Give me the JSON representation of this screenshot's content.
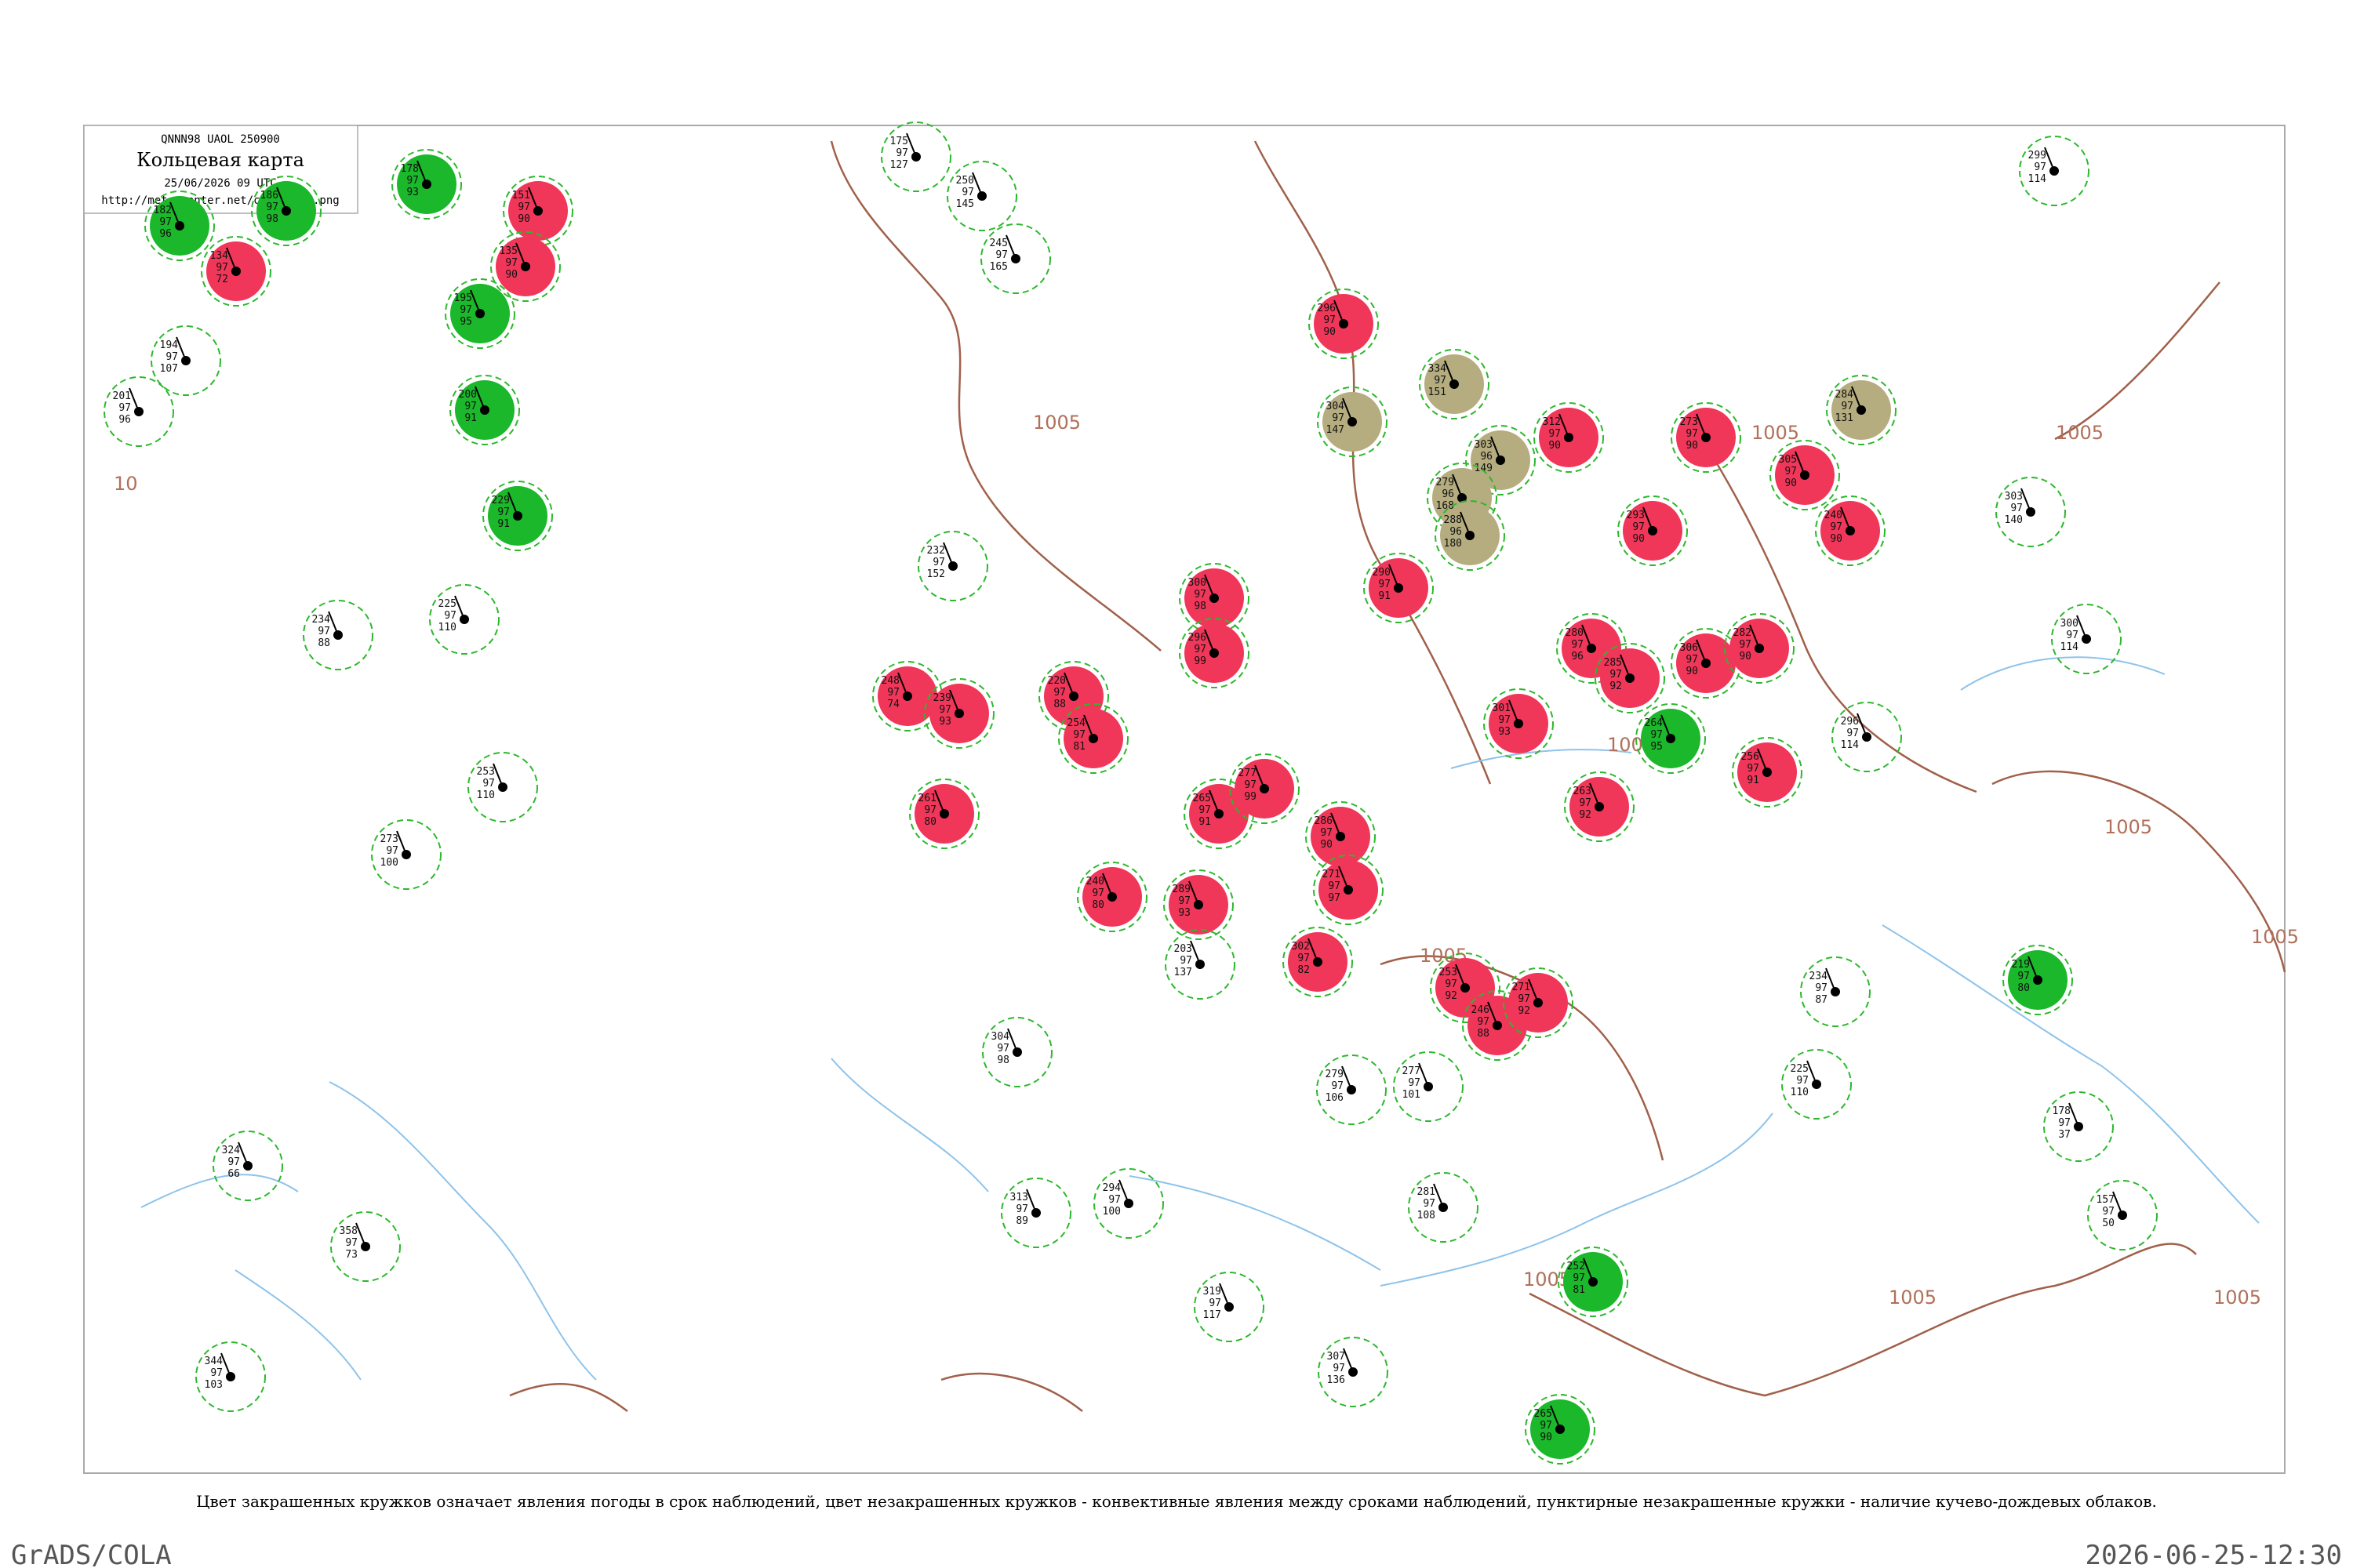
{
  "header": {
    "code": "QNNN98  UAOL  250900",
    "title": "Кольцевая карта",
    "date": "25/06/2026 09 UTC",
    "url": "http://meteocenter.net/circ/UNNN.png"
  },
  "caption": "Цвет закрашенных кружков означает явления погоды в срок наблюдений, цвет незакрашенных кружков - конвективные явления между сроками наблюдений, пунктирные незакрашенные кружки - наличие кучево-дождевых облаков.",
  "footer": {
    "left": "GrADS/COLA",
    "right": "2026-06-25-12:30"
  },
  "isobars": [
    "10",
    "1005",
    "1005",
    "1005",
    "1005",
    "1005",
    "1005",
    "1005",
    "1005",
    "1005",
    "1005"
  ],
  "stations": [
    {
      "kind": "red",
      "values": [
        "134",
        "97",
        "72"
      ]
    },
    {
      "kind": "red",
      "values": [
        "151",
        "97",
        "90"
      ]
    },
    {
      "kind": "red",
      "values": [
        "135",
        "97",
        "90"
      ]
    },
    {
      "kind": "red",
      "values": [
        "248",
        "97",
        "74"
      ]
    },
    {
      "kind": "red",
      "values": [
        "239",
        "97",
        "93"
      ]
    },
    {
      "kind": "red",
      "values": [
        "220",
        "97",
        "88"
      ]
    },
    {
      "kind": "red",
      "values": [
        "254",
        "97",
        "81"
      ]
    },
    {
      "kind": "red",
      "values": [
        "300",
        "97",
        "98"
      ]
    },
    {
      "kind": "red",
      "values": [
        "296",
        "97",
        "99"
      ]
    },
    {
      "kind": "red",
      "values": [
        "261",
        "97",
        "80"
      ]
    },
    {
      "kind": "red",
      "values": [
        "265",
        "97",
        "91"
      ]
    },
    {
      "kind": "red",
      "values": [
        "277",
        "97",
        "99"
      ]
    },
    {
      "kind": "red",
      "values": [
        "286",
        "97",
        "90"
      ]
    },
    {
      "kind": "red",
      "values": [
        "271",
        "97",
        "97"
      ]
    },
    {
      "kind": "red",
      "values": [
        "302",
        "97",
        "82"
      ]
    },
    {
      "kind": "red",
      "values": [
        "240",
        "97",
        "80"
      ]
    },
    {
      "kind": "red",
      "values": [
        "289",
        "97",
        "93"
      ]
    },
    {
      "kind": "red",
      "values": [
        "296",
        "97",
        "90"
      ]
    },
    {
      "kind": "red",
      "values": [
        "290",
        "97",
        "91"
      ]
    },
    {
      "kind": "red",
      "values": [
        "301",
        "97",
        "93"
      ]
    },
    {
      "kind": "red",
      "values": [
        "312",
        "97",
        "90"
      ]
    },
    {
      "kind": "red",
      "values": [
        "280",
        "97",
        "96"
      ]
    },
    {
      "kind": "red",
      "values": [
        "285",
        "97",
        "92"
      ]
    },
    {
      "kind": "red",
      "values": [
        "263",
        "97",
        "92"
      ]
    },
    {
      "kind": "red",
      "values": [
        "293",
        "97",
        "90"
      ]
    },
    {
      "kind": "red",
      "values": [
        "273",
        "97",
        "90"
      ]
    },
    {
      "kind": "red",
      "values": [
        "306",
        "97",
        "90"
      ]
    },
    {
      "kind": "red",
      "values": [
        "282",
        "97",
        "90"
      ]
    },
    {
      "kind": "red",
      "values": [
        "256",
        "97",
        "91"
      ]
    },
    {
      "kind": "red",
      "values": [
        "305",
        "97",
        "90"
      ]
    },
    {
      "kind": "red",
      "values": [
        "240",
        "97",
        "90"
      ]
    },
    {
      "kind": "red",
      "values": [
        "253",
        "97",
        "92"
      ]
    },
    {
      "kind": "red",
      "values": [
        "246",
        "97",
        "88"
      ]
    },
    {
      "kind": "red",
      "values": [
        "271",
        "97",
        "92"
      ]
    },
    {
      "kind": "green",
      "values": [
        "182",
        "97",
        "96"
      ]
    },
    {
      "kind": "green",
      "values": [
        "178",
        "97",
        "93"
      ]
    },
    {
      "kind": "green",
      "values": [
        "195",
        "97",
        "95"
      ]
    },
    {
      "kind": "green",
      "values": [
        "200",
        "97",
        "91"
      ]
    },
    {
      "kind": "green",
      "values": [
        "229",
        "97",
        "91"
      ]
    },
    {
      "kind": "green",
      "values": [
        "264",
        "97",
        "95"
      ]
    },
    {
      "kind": "green",
      "values": [
        "219",
        "97",
        "80"
      ]
    },
    {
      "kind": "green",
      "values": [
        "252",
        "97",
        "81"
      ]
    },
    {
      "kind": "green",
      "values": [
        "265",
        "97",
        "90"
      ]
    },
    {
      "kind": "green",
      "values": [
        "186",
        "97",
        "98"
      ]
    },
    {
      "kind": "olive",
      "values": [
        "304",
        "97",
        "147"
      ]
    },
    {
      "kind": "olive",
      "values": [
        "334",
        "97",
        "151"
      ]
    },
    {
      "kind": "olive",
      "values": [
        "303",
        "96",
        "149"
      ]
    },
    {
      "kind": "olive",
      "values": [
        "279",
        "96",
        "168"
      ]
    },
    {
      "kind": "olive",
      "values": [
        "288",
        "96",
        "180"
      ]
    },
    {
      "kind": "olive",
      "values": [
        "284",
        "97",
        "131"
      ]
    },
    {
      "kind": "dashed",
      "values": [
        "194",
        "97",
        "107"
      ]
    },
    {
      "kind": "dashed",
      "values": [
        "201",
        "97",
        "96"
      ]
    },
    {
      "kind": "dashed",
      "values": [
        "234",
        "97",
        "88"
      ]
    },
    {
      "kind": "dashed",
      "values": [
        "225",
        "97",
        "110"
      ]
    },
    {
      "kind": "dashed",
      "values": [
        "273",
        "97",
        "100"
      ]
    },
    {
      "kind": "dashed",
      "values": [
        "175",
        "97",
        "127"
      ]
    },
    {
      "kind": "dashed",
      "values": [
        "250",
        "97",
        "145"
      ]
    },
    {
      "kind": "dashed",
      "values": [
        "245",
        "97",
        "165"
      ]
    },
    {
      "kind": "dashed",
      "values": [
        "304",
        "97",
        "98"
      ]
    },
    {
      "kind": "dashed",
      "values": [
        "232",
        "97",
        "152"
      ]
    },
    {
      "kind": "dashed",
      "values": [
        "313",
        "97",
        "89"
      ]
    },
    {
      "kind": "dashed",
      "values": [
        "294",
        "97",
        "100"
      ]
    },
    {
      "kind": "dashed",
      "values": [
        "319",
        "97",
        "117"
      ]
    },
    {
      "kind": "dashed",
      "values": [
        "203",
        "97",
        "137"
      ]
    },
    {
      "kind": "dashed",
      "values": [
        "279",
        "97",
        "106"
      ]
    },
    {
      "kind": "dashed",
      "values": [
        "277",
        "97",
        "101"
      ]
    },
    {
      "kind": "dashed",
      "values": [
        "281",
        "97",
        "108"
      ]
    },
    {
      "kind": "dashed",
      "values": [
        "234",
        "97",
        "87"
      ]
    },
    {
      "kind": "dashed",
      "values": [
        "225",
        "97",
        "110"
      ]
    },
    {
      "kind": "dashed",
      "values": [
        "178",
        "97",
        "37"
      ]
    },
    {
      "kind": "dashed",
      "values": [
        "157",
        "97",
        "50"
      ]
    },
    {
      "kind": "dashed",
      "values": [
        "300",
        "97",
        "114"
      ]
    },
    {
      "kind": "dashed",
      "values": [
        "303",
        "97",
        "140"
      ]
    },
    {
      "kind": "dashed",
      "values": [
        "299",
        "97",
        "114"
      ]
    },
    {
      "kind": "dashed",
      "values": [
        "344",
        "97",
        "103"
      ]
    },
    {
      "kind": "dashed",
      "values": [
        "324",
        "97",
        "66"
      ]
    },
    {
      "kind": "dashed",
      "values": [
        "358",
        "97",
        "73"
      ]
    },
    {
      "kind": "dashed",
      "values": [
        "253",
        "97",
        "110"
      ]
    },
    {
      "kind": "dashed",
      "values": [
        "296",
        "97",
        "114"
      ]
    },
    {
      "kind": "dashed",
      "values": [
        "307",
        "97",
        "136"
      ]
    }
  ]
}
